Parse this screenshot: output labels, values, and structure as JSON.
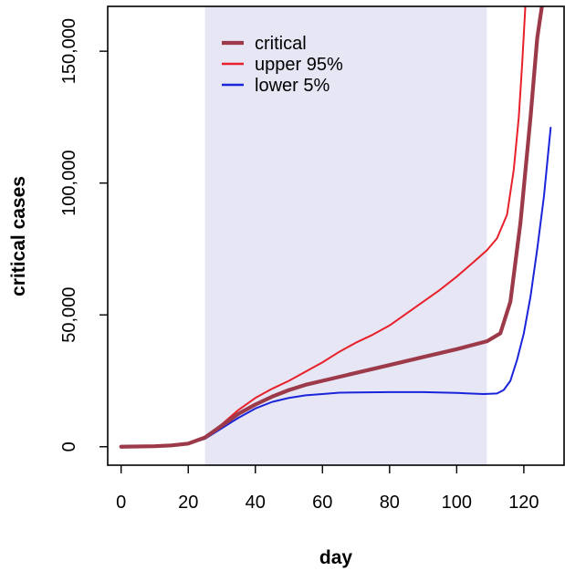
{
  "chart_data": {
    "type": "line",
    "xlabel": "day",
    "ylabel": "critical cases",
    "xlim": [
      -4,
      132
    ],
    "ylim": [
      -7000,
      167000
    ],
    "x_ticks": [
      0,
      20,
      40,
      60,
      80,
      100,
      120
    ],
    "x_tick_labels": [
      "0",
      "20",
      "40",
      "60",
      "80",
      "100",
      "120"
    ],
    "y_ticks": [
      0,
      50000,
      100000,
      150000
    ],
    "y_tick_labels": [
      "0",
      "50,000",
      "100,000",
      "150,000"
    ],
    "shaded_region": {
      "x_start": 25,
      "x_end": 109,
      "color": "#e6e6f5"
    },
    "legend_position": "top-left inside shaded region",
    "grid": false,
    "series": [
      {
        "name": "critical",
        "color": "#9c3a4a",
        "x": [
          0,
          10,
          15,
          20,
          25,
          30,
          35,
          40,
          45,
          50,
          55,
          60,
          70,
          80,
          90,
          100,
          109,
          113,
          116,
          119,
          122,
          124,
          125.5
        ],
        "y": [
          0,
          200,
          500,
          1200,
          3500,
          8000,
          12500,
          16000,
          19000,
          21500,
          23500,
          25000,
          28000,
          31000,
          34000,
          37000,
          40000,
          43000,
          55000,
          85000,
          125000,
          155000,
          168000
        ]
      },
      {
        "name": "upper 95%",
        "color": "#e8202a",
        "x": [
          0,
          10,
          15,
          20,
          25,
          30,
          35,
          40,
          45,
          50,
          55,
          60,
          65,
          70,
          75,
          80,
          85,
          90,
          95,
          100,
          105,
          109,
          112,
          115,
          117,
          118.5,
          119.5,
          120.5
        ],
        "y": [
          0,
          200,
          500,
          1300,
          3500,
          8500,
          14000,
          18500,
          22000,
          25000,
          28500,
          32000,
          36000,
          39500,
          42500,
          46000,
          50500,
          55000,
          59500,
          64500,
          70000,
          74500,
          79000,
          88000,
          105000,
          125000,
          145000,
          168000
        ]
      },
      {
        "name": "lower 5%",
        "color": "#1a24d8",
        "x": [
          0,
          10,
          15,
          20,
          25,
          30,
          35,
          40,
          45,
          50,
          55,
          60,
          65,
          70,
          80,
          90,
          100,
          108,
          112,
          114,
          116,
          118,
          120,
          122,
          124,
          126,
          128
        ],
        "y": [
          0,
          200,
          500,
          1100,
          3000,
          7000,
          11000,
          14500,
          17000,
          18500,
          19500,
          20000,
          20500,
          20600,
          20700,
          20700,
          20400,
          20000,
          20200,
          21500,
          25000,
          33000,
          43000,
          57000,
          75000,
          95000,
          121000
        ]
      }
    ]
  }
}
